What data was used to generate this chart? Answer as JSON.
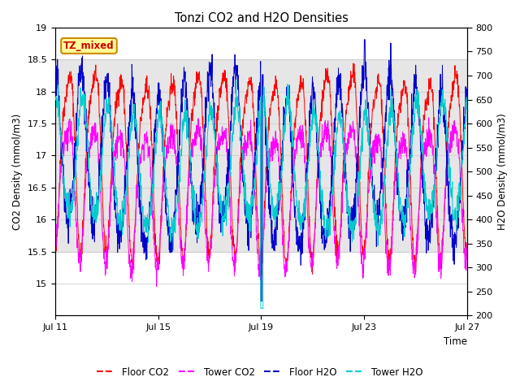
{
  "title": "Tonzi CO2 and H2O Densities",
  "xlabel": "Time",
  "ylabel_left": "CO2 Density (mmol/m3)",
  "ylabel_right": "H2O Density (mmol/m3)",
  "ylim_left": [
    14.5,
    19.0
  ],
  "ylim_right": [
    200,
    800
  ],
  "xtick_labels": [
    "Jul 11",
    "Jul 15",
    "Jul 19",
    "Jul 23",
    "Jul 27"
  ],
  "xtick_positions": [
    0,
    4,
    8,
    12,
    16
  ],
  "yticks_left": [
    15.0,
    15.5,
    16.0,
    16.5,
    17.0,
    17.5,
    18.0,
    18.5,
    19.0
  ],
  "yticks_right": [
    200,
    250,
    300,
    350,
    400,
    450,
    500,
    550,
    600,
    650,
    700,
    750,
    800
  ],
  "colors": {
    "floor_co2": "#FF0000",
    "tower_co2": "#FF00FF",
    "floor_h2o": "#0000CC",
    "tower_h2o": "#00CCCC"
  },
  "legend_labels": [
    "Floor CO2",
    "Tower CO2",
    "Floor H2O",
    "Tower H2O"
  ],
  "annotation_text": "TZ_mixed",
  "annotation_color": "#CC0000",
  "annotation_bg": "#FFFF99",
  "annotation_border": "#CC8800",
  "shaded_region_co2": [
    15.5,
    18.5
  ],
  "n_days": 17,
  "n_points": 1700,
  "background_color": "#FFFFFF"
}
